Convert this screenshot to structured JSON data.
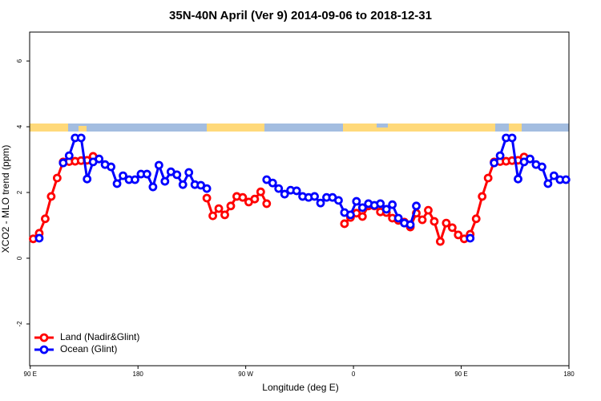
{
  "chart_data": {
    "type": "line",
    "title": "35N-40N April (Ver 9)   2014-09-06 to 2018-12-31",
    "x_label": "Longitude (deg E)",
    "y_label": "XCO2 - MLO trend (ppm)",
    "x": [
      92.5,
      97.5,
      102.5,
      107.5,
      112.5,
      117.5,
      122.5,
      127.5,
      132.5,
      137.5,
      142.5,
      147.5,
      152.5,
      157.5,
      162.5,
      167.5,
      172.5,
      177.5,
      182.5,
      187.5,
      192.5,
      197.5,
      202.5,
      207.5,
      212.5,
      217.5,
      222.5,
      227.5,
      232.5,
      237.5,
      242.5,
      247.5,
      252.5,
      257.5,
      262.5,
      267.5,
      272.5,
      277.5,
      282.5,
      287.5,
      292.5,
      297.5,
      302.5,
      307.5,
      312.5,
      317.5,
      322.5,
      327.5,
      332.5,
      337.5,
      342.5,
      347.5,
      352.5,
      357.5,
      362.5,
      367.5,
      372.5,
      377.5,
      382.5,
      387.5,
      392.5,
      397.5,
      402.5,
      407.5,
      412.5,
      417.5,
      422.5,
      427.5,
      432.5,
      437.5,
      442.5,
      447.5,
      452.5,
      457.5,
      462.5,
      467.5,
      472.5,
      477.5,
      482.5,
      487.5,
      492.5,
      497.5,
      502.5,
      507.5,
      512.5,
      517.5,
      522.5,
      527.5,
      532.5,
      537.5
    ],
    "series": [
      {
        "name": "Land (Nadir&Glint)",
        "color": "#ff0000",
        "values": [
          0.59,
          0.76,
          1.2,
          1.88,
          2.44,
          2.93,
          2.94,
          2.95,
          2.97,
          2.98,
          3.1,
          null,
          null,
          null,
          null,
          null,
          null,
          null,
          null,
          null,
          null,
          null,
          null,
          null,
          null,
          null,
          null,
          null,
          null,
          1.83,
          1.29,
          1.51,
          1.32,
          1.59,
          1.88,
          1.85,
          1.71,
          1.8,
          2.02,
          1.66,
          null,
          null,
          null,
          null,
          null,
          null,
          null,
          null,
          null,
          null,
          null,
          null,
          1.05,
          1.24,
          1.37,
          1.27,
          1.59,
          1.59,
          1.41,
          1.39,
          1.22,
          1.15,
          1.1,
          0.95,
          1.37,
          1.17,
          1.46,
          1.12,
          0.51,
          1.07,
          0.93,
          0.71,
          0.59,
          0.73,
          1.2,
          1.88,
          2.44,
          2.93,
          2.94,
          2.95,
          2.97,
          2.98,
          3.08,
          null,
          null,
          null,
          null,
          null,
          null,
          null
        ]
      },
      {
        "name": "Ocean (Glint)",
        "color": "#0000ff",
        "values": [
          null,
          0.61,
          null,
          null,
          null,
          2.9,
          3.12,
          3.66,
          3.66,
          2.41,
          2.93,
          3.02,
          2.85,
          2.78,
          2.27,
          2.51,
          2.39,
          2.39,
          2.56,
          2.56,
          2.17,
          2.83,
          2.34,
          2.63,
          2.54,
          2.24,
          2.61,
          2.24,
          2.22,
          2.12,
          null,
          null,
          null,
          null,
          null,
          null,
          null,
          null,
          null,
          2.39,
          2.29,
          2.12,
          1.95,
          2.07,
          2.05,
          1.88,
          1.85,
          1.88,
          1.68,
          1.85,
          1.85,
          1.76,
          1.39,
          1.32,
          1.73,
          1.54,
          1.66,
          1.61,
          1.66,
          1.49,
          1.63,
          1.22,
          1.07,
          1.02,
          1.59,
          null,
          null,
          null,
          null,
          null,
          null,
          null,
          null,
          0.61,
          null,
          null,
          null,
          2.9,
          3.12,
          3.66,
          3.66,
          2.41,
          2.93,
          3.02,
          2.85,
          2.78,
          2.27,
          2.51,
          2.39,
          2.39
        ]
      }
    ],
    "xlim": [
      89.5,
      540
    ],
    "xticks": [
      {
        "value": 90,
        "label": "90 E"
      },
      180,
      {
        "value": 270,
        "label": "90 W"
      },
      {
        "value": 360,
        "label": "0"
      },
      {
        "value": 450,
        "label": "90 E"
      },
      {
        "value": 540,
        "label": "180"
      }
    ],
    "ylim": [
      -3.27,
      6.88
    ],
    "yticks": [
      -2,
      0,
      2,
      4,
      6
    ],
    "legend": "lower left"
  }
}
